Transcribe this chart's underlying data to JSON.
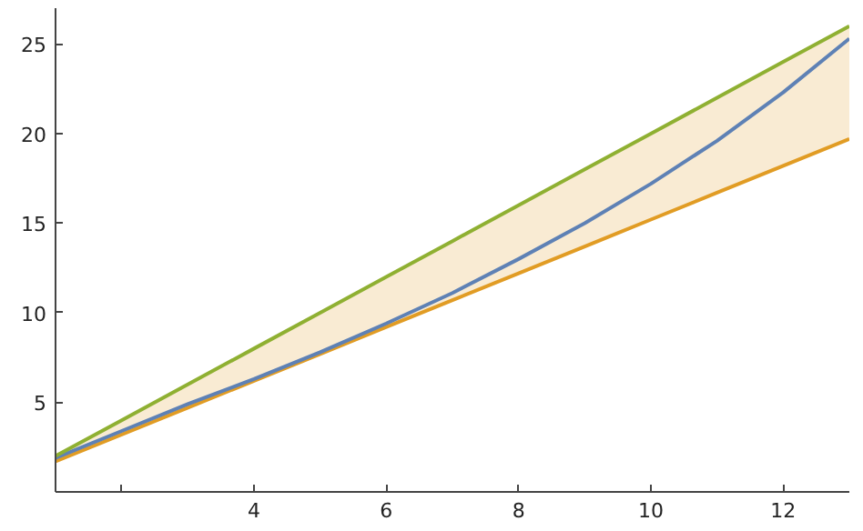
{
  "chart_data": {
    "type": "line",
    "x": [
      1,
      2,
      3,
      4,
      5,
      6,
      7,
      8,
      9,
      10,
      11,
      12,
      13
    ],
    "series": [
      {
        "color": "#e19c24",
        "values": [
          1.7,
          3.2,
          4.7,
          6.2,
          7.7,
          9.2,
          10.7,
          12.2,
          13.7,
          15.2,
          16.7,
          18.2,
          19.7
        ],
        "lower": [
          1.7,
          3.2,
          4.7,
          6.2,
          7.7,
          9.2,
          10.7,
          12.2,
          13.7,
          15.2,
          16.7,
          18.2,
          19.7
        ],
        "upper": [
          2,
          4,
          6,
          8,
          10,
          12,
          14,
          16,
          18,
          20,
          22,
          24,
          26
        ]
      },
      {
        "color": "#5e81b5",
        "values": [
          1.9,
          3.4,
          4.9,
          6.3,
          7.8,
          9.4,
          11.1,
          13.0,
          15.0,
          17.2,
          19.6,
          22.3,
          25.3
        ]
      },
      {
        "color": "#8fb032",
        "values": [
          2,
          4,
          6,
          8,
          10,
          12,
          14,
          16,
          18,
          20,
          22,
          24,
          26
        ]
      }
    ],
    "xlim": [
      1,
      13
    ],
    "ylim": [
      0,
      27
    ],
    "xticks": [
      {
        "value": 2,
        "label": null
      },
      4,
      6,
      8,
      10,
      12
    ],
    "yticks": [
      5,
      10,
      15,
      20,
      25
    ],
    "grid": false,
    "marker": "none",
    "line_style": "solid"
  }
}
